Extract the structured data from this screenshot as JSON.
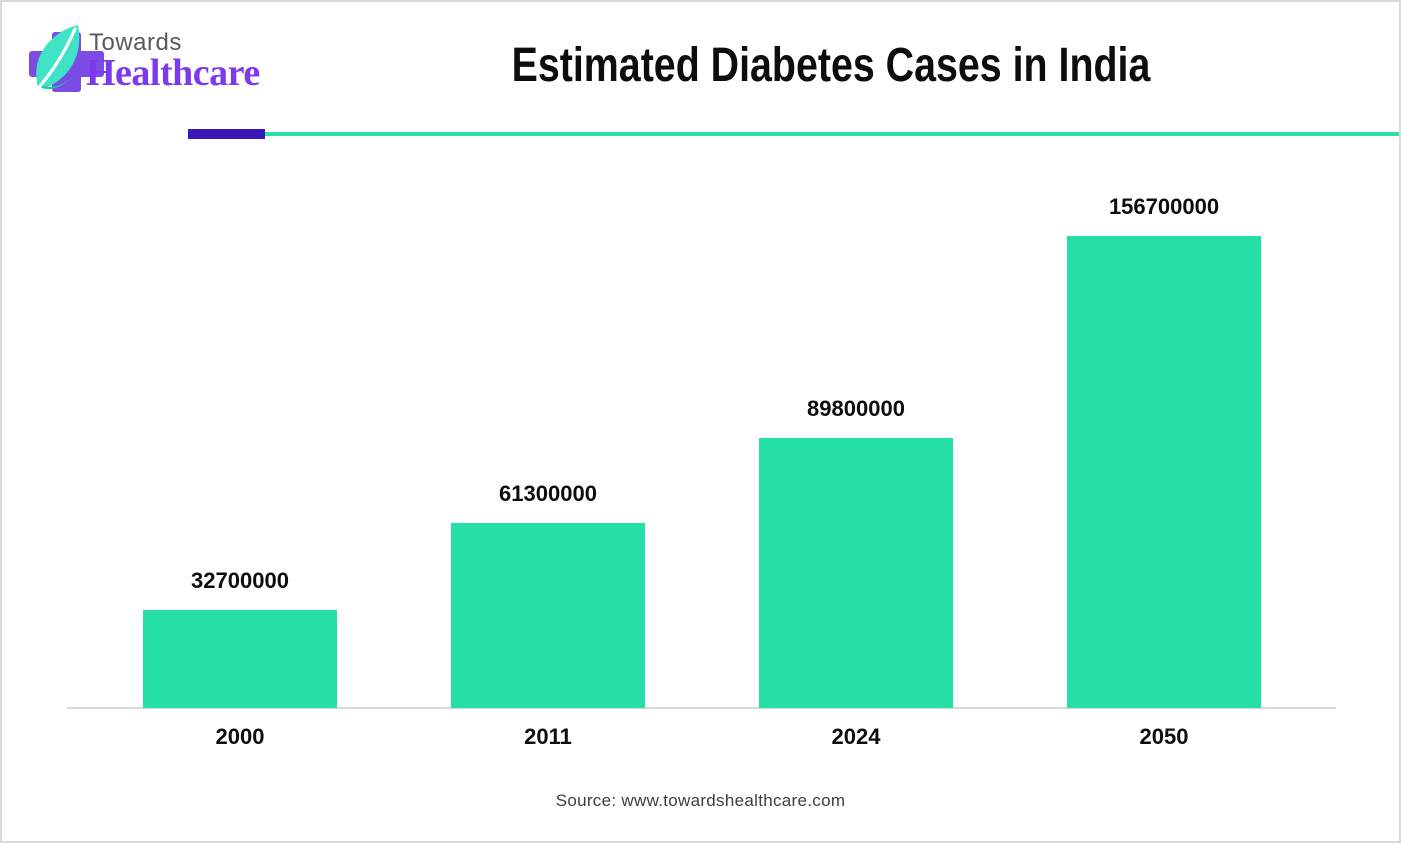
{
  "logo": {
    "line1": "Towards",
    "line2": "Healthcare",
    "cross_color": "#7b4be4",
    "leaf_color": "#3fe3c6",
    "leaf_shadow_color": "#17c9a6",
    "line1_color": "#58595b",
    "line2_color": "#7c3aec"
  },
  "header": {
    "underline_accent_color": "#3a18b8",
    "underline_line_color": "#2bdfa9"
  },
  "chart_data": {
    "type": "bar",
    "title": "Estimated Diabetes Cases in India",
    "categories": [
      "2000",
      "2011",
      "2024",
      "2050"
    ],
    "values": [
      32700000,
      61300000,
      89800000,
      156700000
    ],
    "data_labels": [
      "32700000",
      "61300000",
      "89800000",
      "156700000"
    ],
    "xlabel": "",
    "ylabel": "",
    "ylim": [
      0,
      156700000
    ],
    "grid": false,
    "legend": false,
    "bar_color": "#26dfa6",
    "axis_line_color": "#d9d9d9",
    "label_color": "#0d0d0d"
  },
  "footer": {
    "source": "Source: www.towardshealthcare.com"
  }
}
